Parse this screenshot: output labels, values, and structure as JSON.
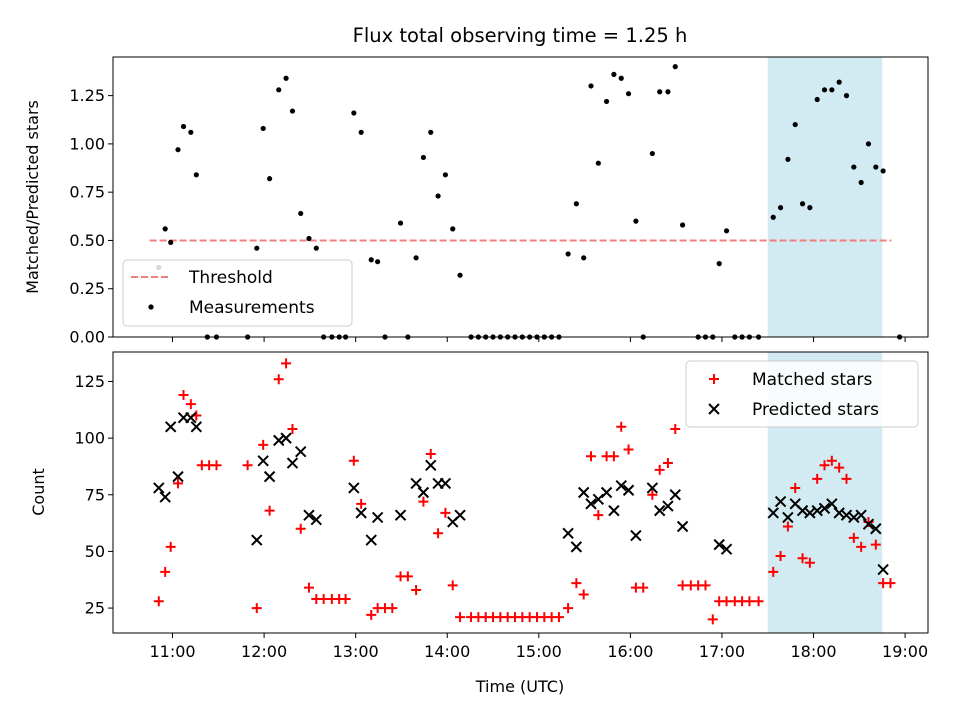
{
  "chart_data": [
    {
      "type": "scatter",
      "title": "Flux total observing time = 1.25 h",
      "ylabel": "Matched/Predicted stars",
      "xlabel": "",
      "ylim": [
        0,
        1.45
      ],
      "yticks": [
        0.0,
        0.25,
        0.5,
        0.75,
        1.0,
        1.25
      ],
      "ytick_labels": [
        "0.00",
        "0.25",
        "0.50",
        "0.75",
        "1.00",
        "1.25"
      ],
      "xlim_hours": [
        10.35,
        19.25
      ],
      "xticks_hours": [
        11,
        12,
        13,
        14,
        15,
        16,
        17,
        18,
        19
      ],
      "xtick_labels": [
        "11:00",
        "12:00",
        "13:00",
        "14:00",
        "15:00",
        "16:00",
        "17:00",
        "18:00",
        "19:00"
      ],
      "shaded_span_hours": [
        17.5,
        18.75
      ],
      "shaded_color": "#add8e6",
      "legend_position": "lower-left",
      "threshold": {
        "name": "Threshold",
        "value": 0.5,
        "x_range_hours": [
          10.75,
          18.85
        ],
        "color": "#f08080"
      },
      "series": [
        {
          "name": "Measurements",
          "color": "#000000",
          "points": [
            [
              10.85,
              0.36
            ],
            [
              10.92,
              0.56
            ],
            [
              10.98,
              0.49
            ],
            [
              11.06,
              0.97
            ],
            [
              11.12,
              1.09
            ],
            [
              11.2,
              1.06
            ],
            [
              11.26,
              0.84
            ],
            [
              11.38,
              0
            ],
            [
              11.48,
              0
            ],
            [
              11.82,
              0
            ],
            [
              11.92,
              0.46
            ],
            [
              11.99,
              1.08
            ],
            [
              12.06,
              0.82
            ],
            [
              12.16,
              1.28
            ],
            [
              12.24,
              1.34
            ],
            [
              12.31,
              1.17
            ],
            [
              12.4,
              0.64
            ],
            [
              12.49,
              0.51
            ],
            [
              12.57,
              0.46
            ],
            [
              12.65,
              0
            ],
            [
              12.74,
              0
            ],
            [
              12.82,
              0
            ],
            [
              12.89,
              0
            ],
            [
              12.98,
              1.16
            ],
            [
              13.06,
              1.06
            ],
            [
              13.17,
              0.4
            ],
            [
              13.24,
              0.39
            ],
            [
              13.32,
              0
            ],
            [
              13.49,
              0.59
            ],
            [
              13.57,
              0
            ],
            [
              13.66,
              0.41
            ],
            [
              13.74,
              0.93
            ],
            [
              13.82,
              1.06
            ],
            [
              13.9,
              0.73
            ],
            [
              13.98,
              0.84
            ],
            [
              14.06,
              0.56
            ],
            [
              14.14,
              0.32
            ],
            [
              14.26,
              0
            ],
            [
              14.34,
              0
            ],
            [
              14.42,
              0
            ],
            [
              14.5,
              0
            ],
            [
              14.58,
              0
            ],
            [
              14.66,
              0
            ],
            [
              14.74,
              0
            ],
            [
              14.82,
              0
            ],
            [
              14.9,
              0
            ],
            [
              14.98,
              0
            ],
            [
              15.06,
              0
            ],
            [
              15.14,
              0
            ],
            [
              15.22,
              0
            ],
            [
              15.32,
              0.43
            ],
            [
              15.41,
              0.69
            ],
            [
              15.49,
              0.41
            ],
            [
              15.57,
              1.3
            ],
            [
              15.65,
              0.9
            ],
            [
              15.74,
              1.22
            ],
            [
              15.82,
              1.36
            ],
            [
              15.9,
              1.34
            ],
            [
              15.98,
              1.26
            ],
            [
              16.06,
              0.6
            ],
            [
              16.14,
              0
            ],
            [
              16.24,
              0.95
            ],
            [
              16.32,
              1.27
            ],
            [
              16.41,
              1.27
            ],
            [
              16.49,
              1.4
            ],
            [
              16.57,
              0.58
            ],
            [
              16.74,
              0
            ],
            [
              16.82,
              0
            ],
            [
              16.9,
              0
            ],
            [
              16.97,
              0.38
            ],
            [
              17.05,
              0.55
            ],
            [
              17.14,
              0
            ],
            [
              17.22,
              0
            ],
            [
              17.3,
              0
            ],
            [
              17.4,
              0
            ],
            [
              17.56,
              0.62
            ],
            [
              17.64,
              0.67
            ],
            [
              17.72,
              0.92
            ],
            [
              17.8,
              1.1
            ],
            [
              17.88,
              0.69
            ],
            [
              17.96,
              0.67
            ],
            [
              18.04,
              1.23
            ],
            [
              18.12,
              1.28
            ],
            [
              18.2,
              1.28
            ],
            [
              18.28,
              1.32
            ],
            [
              18.36,
              1.25
            ],
            [
              18.44,
              0.88
            ],
            [
              18.52,
              0.8
            ],
            [
              18.6,
              1.0
            ],
            [
              18.68,
              0.88
            ],
            [
              18.76,
              0.86
            ],
            [
              18.94,
              0
            ]
          ]
        }
      ]
    },
    {
      "type": "scatter",
      "title": "",
      "ylabel": "Count",
      "xlabel": "Time (UTC)",
      "ylim": [
        14,
        138
      ],
      "yticks": [
        25,
        50,
        75,
        100,
        125
      ],
      "ytick_labels": [
        "25",
        "50",
        "75",
        "100",
        "125"
      ],
      "xlim_hours": [
        10.35,
        19.25
      ],
      "xticks_hours": [
        11,
        12,
        13,
        14,
        15,
        16,
        17,
        18,
        19
      ],
      "xtick_labels": [
        "11:00",
        "12:00",
        "13:00",
        "14:00",
        "15:00",
        "16:00",
        "17:00",
        "18:00",
        "19:00"
      ],
      "shaded_span_hours": [
        17.5,
        18.75
      ],
      "shaded_color": "#add8e6",
      "legend_position": "upper-right",
      "series": [
        {
          "name": "Matched stars",
          "marker": "plus",
          "color": "#ff0000",
          "points": [
            [
              10.85,
              28
            ],
            [
              10.92,
              41
            ],
            [
              10.98,
              52
            ],
            [
              11.06,
              80
            ],
            [
              11.12,
              119
            ],
            [
              11.2,
              115
            ],
            [
              11.26,
              110
            ],
            [
              11.32,
              88
            ],
            [
              11.4,
              88
            ],
            [
              11.48,
              88
            ],
            [
              11.82,
              88
            ],
            [
              11.92,
              25
            ],
            [
              11.99,
              97
            ],
            [
              12.06,
              68
            ],
            [
              12.16,
              126
            ],
            [
              12.24,
              133
            ],
            [
              12.31,
              104
            ],
            [
              12.4,
              60
            ],
            [
              12.49,
              34
            ],
            [
              12.57,
              29
            ],
            [
              12.65,
              29
            ],
            [
              12.74,
              29
            ],
            [
              12.82,
              29
            ],
            [
              12.89,
              29
            ],
            [
              12.98,
              90
            ],
            [
              13.06,
              71
            ],
            [
              13.17,
              22
            ],
            [
              13.24,
              25
            ],
            [
              13.32,
              25
            ],
            [
              13.4,
              25
            ],
            [
              13.49,
              39
            ],
            [
              13.57,
              39
            ],
            [
              13.66,
              33
            ],
            [
              13.74,
              72
            ],
            [
              13.82,
              93
            ],
            [
              13.9,
              58
            ],
            [
              13.98,
              67
            ],
            [
              14.06,
              35
            ],
            [
              14.14,
              21
            ],
            [
              14.26,
              21
            ],
            [
              14.34,
              21
            ],
            [
              14.42,
              21
            ],
            [
              14.5,
              21
            ],
            [
              14.58,
              21
            ],
            [
              14.66,
              21
            ],
            [
              14.74,
              21
            ],
            [
              14.82,
              21
            ],
            [
              14.9,
              21
            ],
            [
              14.98,
              21
            ],
            [
              15.06,
              21
            ],
            [
              15.14,
              21
            ],
            [
              15.22,
              21
            ],
            [
              15.32,
              25
            ],
            [
              15.41,
              36
            ],
            [
              15.49,
              31
            ],
            [
              15.57,
              92
            ],
            [
              15.65,
              66
            ],
            [
              15.74,
              92
            ],
            [
              15.82,
              92
            ],
            [
              15.9,
              105
            ],
            [
              15.98,
              95
            ],
            [
              16.06,
              34
            ],
            [
              16.14,
              34
            ],
            [
              16.24,
              75
            ],
            [
              16.32,
              86
            ],
            [
              16.41,
              89
            ],
            [
              16.49,
              104
            ],
            [
              16.57,
              35
            ],
            [
              16.66,
              35
            ],
            [
              16.74,
              35
            ],
            [
              16.82,
              35
            ],
            [
              16.9,
              20
            ],
            [
              16.97,
              28
            ],
            [
              17.05,
              28
            ],
            [
              17.14,
              28
            ],
            [
              17.22,
              28
            ],
            [
              17.3,
              28
            ],
            [
              17.4,
              28
            ],
            [
              17.56,
              41
            ],
            [
              17.64,
              48
            ],
            [
              17.72,
              61
            ],
            [
              17.8,
              78
            ],
            [
              17.88,
              47
            ],
            [
              17.96,
              45
            ],
            [
              18.04,
              82
            ],
            [
              18.12,
              88
            ],
            [
              18.2,
              90
            ],
            [
              18.28,
              87
            ],
            [
              18.36,
              82
            ],
            [
              18.44,
              56
            ],
            [
              18.52,
              52
            ],
            [
              18.6,
              63
            ],
            [
              18.68,
              53
            ],
            [
              18.76,
              36
            ],
            [
              18.84,
              36
            ]
          ]
        },
        {
          "name": "Predicted stars",
          "marker": "x",
          "color": "#000000",
          "points": [
            [
              10.85,
              78
            ],
            [
              10.92,
              74
            ],
            [
              10.98,
              105
            ],
            [
              11.06,
              83
            ],
            [
              11.12,
              109
            ],
            [
              11.2,
              109
            ],
            [
              11.26,
              105
            ],
            [
              11.92,
              55
            ],
            [
              11.99,
              90
            ],
            [
              12.06,
              83
            ],
            [
              12.16,
              99
            ],
            [
              12.24,
              100
            ],
            [
              12.31,
              89
            ],
            [
              12.4,
              94
            ],
            [
              12.49,
              66
            ],
            [
              12.57,
              64
            ],
            [
              12.98,
              78
            ],
            [
              13.06,
              67
            ],
            [
              13.17,
              55
            ],
            [
              13.24,
              65
            ],
            [
              13.49,
              66
            ],
            [
              13.66,
              80
            ],
            [
              13.74,
              76
            ],
            [
              13.82,
              88
            ],
            [
              13.9,
              80
            ],
            [
              13.98,
              80
            ],
            [
              14.06,
              63
            ],
            [
              14.14,
              66
            ],
            [
              15.32,
              58
            ],
            [
              15.41,
              52
            ],
            [
              15.49,
              76
            ],
            [
              15.57,
              71
            ],
            [
              15.65,
              73
            ],
            [
              15.74,
              76
            ],
            [
              15.82,
              68
            ],
            [
              15.9,
              79
            ],
            [
              15.98,
              77
            ],
            [
              16.06,
              57
            ],
            [
              16.24,
              78
            ],
            [
              16.32,
              68
            ],
            [
              16.41,
              70
            ],
            [
              16.49,
              75
            ],
            [
              16.57,
              61
            ],
            [
              16.97,
              53
            ],
            [
              17.05,
              51
            ],
            [
              17.56,
              67
            ],
            [
              17.64,
              72
            ],
            [
              17.72,
              65
            ],
            [
              17.8,
              71
            ],
            [
              17.88,
              68
            ],
            [
              17.96,
              67
            ],
            [
              18.04,
              68
            ],
            [
              18.12,
              69
            ],
            [
              18.2,
              71
            ],
            [
              18.28,
              67
            ],
            [
              18.36,
              66
            ],
            [
              18.44,
              65
            ],
            [
              18.52,
              66
            ],
            [
              18.6,
              62
            ],
            [
              18.68,
              60
            ],
            [
              18.76,
              42
            ]
          ]
        }
      ]
    }
  ]
}
